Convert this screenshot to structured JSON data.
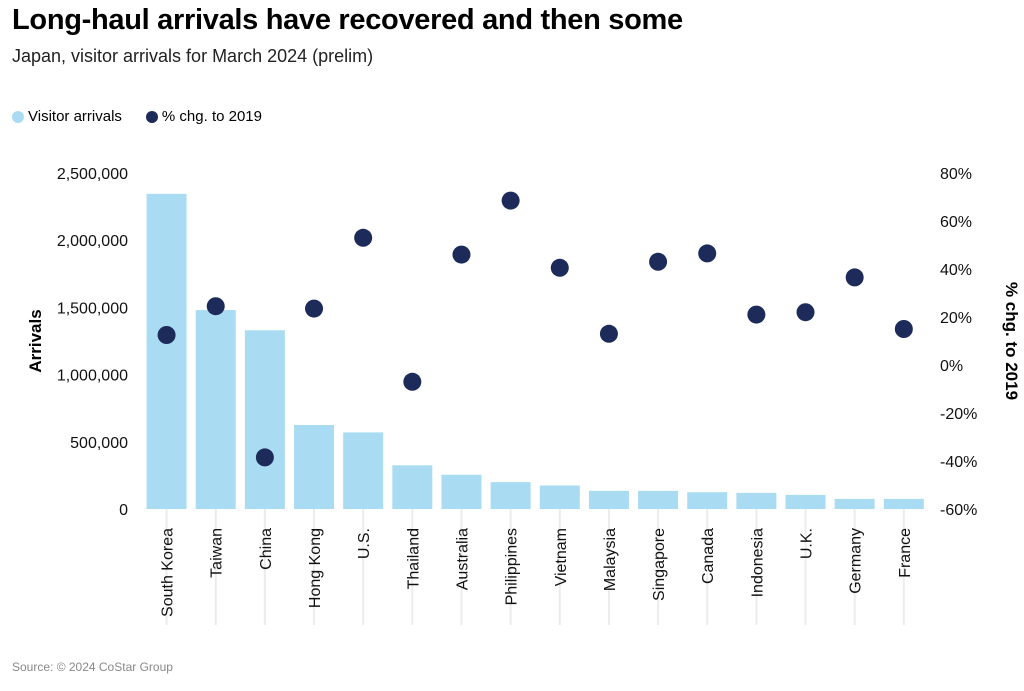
{
  "title": "Long-haul arrivals have recovered and then some",
  "subtitle": "Japan, visitor arrivals for March 2024 (prelim)",
  "legend": [
    {
      "label": "Visitor arrivals",
      "color": "#a9dcf2"
    },
    {
      "label": "% chg. to 2019",
      "color": "#1c2b5a"
    }
  ],
  "source": "Source: © 2024 CoStar Group",
  "chart_data": {
    "type": "bar",
    "title": "Long-haul arrivals have recovered and then some",
    "xlabel": "",
    "ylabel": "Arrivals",
    "y2label": "% chg. to 2019",
    "ylim": [
      0,
      2500000
    ],
    "y2lim": [
      -60,
      80
    ],
    "yticks": [
      "0",
      "500,000",
      "1,000,000",
      "1,500,000",
      "2,000,000",
      "2,500,000"
    ],
    "y2ticks": [
      "-60%",
      "-40%",
      "-20%",
      "0%",
      "20%",
      "40%",
      "60%",
      "80%"
    ],
    "categories": [
      "South Korea",
      "Taiwan",
      "China",
      "Hong Kong",
      "U.S.",
      "Thailand",
      "Australia",
      "Philippines",
      "Vietnam",
      "Malaysia",
      "Singapore",
      "Canada",
      "Indonesia",
      "U.K.",
      "Germany",
      "France"
    ],
    "series": [
      {
        "name": "Visitor arrivals",
        "type": "bar",
        "axis": "left",
        "color": "#a9dcf2",
        "values": [
          2345000,
          1480000,
          1330000,
          625000,
          570000,
          325000,
          255000,
          200000,
          175000,
          135000,
          135000,
          125000,
          120000,
          105000,
          75000,
          75000
        ]
      },
      {
        "name": "% chg. to 2019",
        "type": "scatter",
        "axis": "right",
        "color": "#1c2b5a",
        "values": [
          12.5,
          24.5,
          -38.5,
          23.5,
          53,
          -7,
          46,
          68.5,
          40.5,
          13,
          43,
          46.5,
          21,
          22,
          36.5,
          15
        ]
      }
    ]
  }
}
